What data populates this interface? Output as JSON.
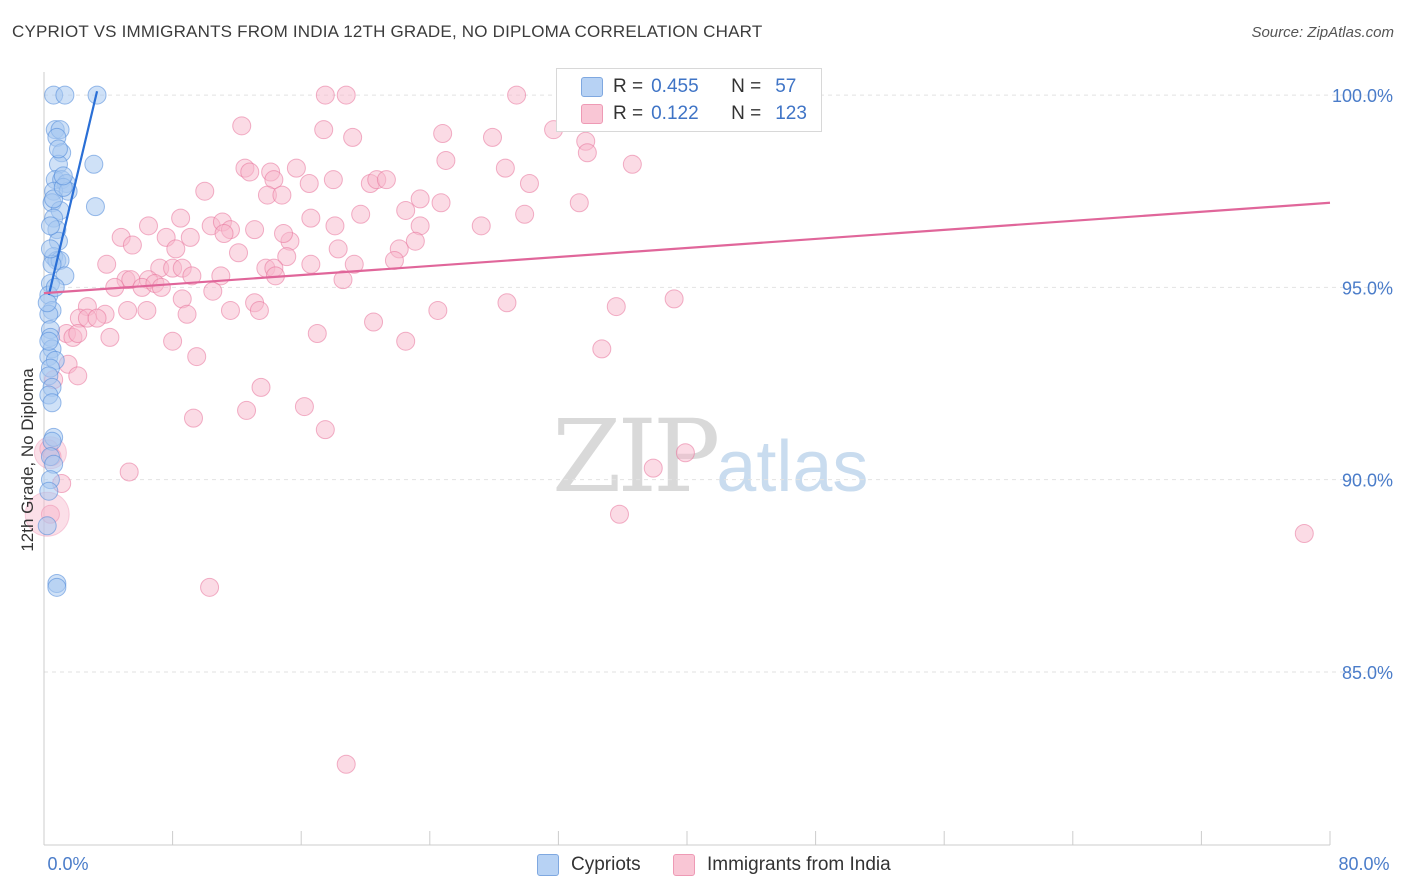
{
  "header": {
    "title": "CYPRIOT VS IMMIGRANTS FROM INDIA 12TH GRADE, NO DIPLOMA CORRELATION CHART",
    "source": "Source: ZipAtlas.com"
  },
  "watermark": {
    "zip": "ZIP",
    "atlas": "atlas"
  },
  "legend": {
    "rows": [
      {
        "r_label": "R =",
        "r_value": "0.455",
        "n_label": "N =",
        "n_value": "57",
        "color": "#a8c8f0"
      },
      {
        "r_label": "R =",
        "r_value": "0.122",
        "n_label": "N =",
        "n_value": "123",
        "color": "#f7b8cb"
      }
    ]
  },
  "bottom_legend": {
    "series_a": "Cypriots",
    "series_b": "Immigrants from India"
  },
  "chart_data": {
    "type": "scatter",
    "title": "CYPRIOT VS IMMIGRANTS FROM INDIA 12TH GRADE, NO DIPLOMA CORRELATION CHART",
    "xlabel": "",
    "ylabel": "12th Grade, No Diploma",
    "xlim": [
      0,
      80
    ],
    "ylim": [
      80.5,
      100.6
    ],
    "x_tick_labels": [
      "0.0%",
      "80.0%"
    ],
    "y_ticks": [
      85,
      90,
      95,
      100
    ],
    "y_tick_labels": [
      "85.0%",
      "90.0%",
      "95.0%",
      "100.0%"
    ],
    "series": [
      {
        "name": "Cypriots",
        "color": "#4a86d8",
        "fill": "#a8c8f0",
        "trend": {
          "x": [
            0.3,
            3.3
          ],
          "y": [
            94.8,
            100.1
          ]
        },
        "points": [
          [
            0.6,
            100.0
          ],
          [
            1.3,
            100.0
          ],
          [
            3.3,
            100.0
          ],
          [
            0.7,
            99.1
          ],
          [
            1.0,
            99.1
          ],
          [
            0.8,
            98.9
          ],
          [
            1.1,
            98.5
          ],
          [
            0.9,
            98.2
          ],
          [
            3.1,
            98.2
          ],
          [
            0.7,
            97.8
          ],
          [
            1.1,
            97.8
          ],
          [
            1.4,
            97.7
          ],
          [
            0.6,
            97.5
          ],
          [
            1.5,
            97.5
          ],
          [
            0.5,
            97.2
          ],
          [
            3.2,
            97.1
          ],
          [
            1.0,
            97.0
          ],
          [
            0.6,
            96.8
          ],
          [
            0.8,
            96.5
          ],
          [
            0.9,
            96.2
          ],
          [
            0.6,
            95.8
          ],
          [
            0.8,
            95.7
          ],
          [
            1.0,
            95.7
          ],
          [
            0.5,
            95.6
          ],
          [
            1.3,
            95.3
          ],
          [
            0.4,
            95.1
          ],
          [
            0.3,
            94.8
          ],
          [
            0.5,
            94.4
          ],
          [
            0.3,
            94.3
          ],
          [
            0.4,
            93.9
          ],
          [
            0.4,
            93.7
          ],
          [
            0.5,
            93.4
          ],
          [
            0.3,
            93.2
          ],
          [
            0.7,
            93.1
          ],
          [
            0.4,
            92.9
          ],
          [
            0.3,
            92.7
          ],
          [
            0.5,
            92.4
          ],
          [
            0.3,
            92.2
          ],
          [
            0.6,
            91.1
          ],
          [
            0.5,
            91.0
          ],
          [
            0.4,
            90.6
          ],
          [
            0.6,
            90.4
          ],
          [
            0.4,
            90.0
          ],
          [
            0.3,
            89.7
          ],
          [
            0.2,
            88.8
          ],
          [
            0.8,
            87.3
          ],
          [
            0.8,
            87.2
          ],
          [
            0.2,
            94.6
          ],
          [
            0.6,
            97.3
          ],
          [
            1.2,
            97.6
          ],
          [
            0.4,
            96.0
          ],
          [
            0.7,
            95.0
          ],
          [
            0.3,
            93.6
          ],
          [
            0.5,
            92.0
          ],
          [
            0.9,
            98.6
          ],
          [
            1.2,
            97.9
          ],
          [
            0.4,
            96.6
          ]
        ]
      },
      {
        "name": "Immigrants from India",
        "color": "#e8729a",
        "fill": "#f7b8cb",
        "trend": {
          "x": [
            0.0,
            80.0
          ],
          "y": [
            94.85,
            97.2
          ]
        },
        "points": [
          [
            17.5,
            100.0
          ],
          [
            18.8,
            100.0
          ],
          [
            29.4,
            100.0
          ],
          [
            12.3,
            99.2
          ],
          [
            17.4,
            99.1
          ],
          [
            24.8,
            99.0
          ],
          [
            27.9,
            98.9
          ],
          [
            19.2,
            98.9
          ],
          [
            31.7,
            99.1
          ],
          [
            33.7,
            98.8
          ],
          [
            33.8,
            98.5
          ],
          [
            25.0,
            98.3
          ],
          [
            36.6,
            98.2
          ],
          [
            12.5,
            98.1
          ],
          [
            12.8,
            98.0
          ],
          [
            14.1,
            98.0
          ],
          [
            15.7,
            98.1
          ],
          [
            28.7,
            98.1
          ],
          [
            14.3,
            97.8
          ],
          [
            16.5,
            97.7
          ],
          [
            18.0,
            97.8
          ],
          [
            20.3,
            97.7
          ],
          [
            20.7,
            97.8
          ],
          [
            21.3,
            97.8
          ],
          [
            30.2,
            97.7
          ],
          [
            10.0,
            97.5
          ],
          [
            13.9,
            97.4
          ],
          [
            14.8,
            97.4
          ],
          [
            33.3,
            97.2
          ],
          [
            23.4,
            97.3
          ],
          [
            24.7,
            97.2
          ],
          [
            8.5,
            96.8
          ],
          [
            16.6,
            96.8
          ],
          [
            19.7,
            96.9
          ],
          [
            22.5,
            97.0
          ],
          [
            29.9,
            96.9
          ],
          [
            10.4,
            96.6
          ],
          [
            11.1,
            96.7
          ],
          [
            11.6,
            96.5
          ],
          [
            13.1,
            96.5
          ],
          [
            18.1,
            96.6
          ],
          [
            23.4,
            96.6
          ],
          [
            27.2,
            96.6
          ],
          [
            4.8,
            96.3
          ],
          [
            7.6,
            96.3
          ],
          [
            9.1,
            96.3
          ],
          [
            11.2,
            96.4
          ],
          [
            15.3,
            96.2
          ],
          [
            23.1,
            96.2
          ],
          [
            5.5,
            96.1
          ],
          [
            8.2,
            96.0
          ],
          [
            12.1,
            95.9
          ],
          [
            15.1,
            95.8
          ],
          [
            18.3,
            96.0
          ],
          [
            22.1,
            96.0
          ],
          [
            3.9,
            95.6
          ],
          [
            7.2,
            95.5
          ],
          [
            8.0,
            95.5
          ],
          [
            8.6,
            95.5
          ],
          [
            13.8,
            95.5
          ],
          [
            14.3,
            95.5
          ],
          [
            16.6,
            95.6
          ],
          [
            19.3,
            95.6
          ],
          [
            14.4,
            95.3
          ],
          [
            5.1,
            95.2
          ],
          [
            5.4,
            95.2
          ],
          [
            6.5,
            95.2
          ],
          [
            11.0,
            95.3
          ],
          [
            9.2,
            95.3
          ],
          [
            18.6,
            95.2
          ],
          [
            4.4,
            95.0
          ],
          [
            6.1,
            95.0
          ],
          [
            6.9,
            95.1
          ],
          [
            7.3,
            95.0
          ],
          [
            10.5,
            94.9
          ],
          [
            13.1,
            94.6
          ],
          [
            8.6,
            94.7
          ],
          [
            28.8,
            94.6
          ],
          [
            35.6,
            94.5
          ],
          [
            39.2,
            94.7
          ],
          [
            2.7,
            94.5
          ],
          [
            3.8,
            94.3
          ],
          [
            5.2,
            94.4
          ],
          [
            6.4,
            94.4
          ],
          [
            8.9,
            94.3
          ],
          [
            11.6,
            94.4
          ],
          [
            13.4,
            94.4
          ],
          [
            24.5,
            94.4
          ],
          [
            20.5,
            94.1
          ],
          [
            2.2,
            94.2
          ],
          [
            2.7,
            94.2
          ],
          [
            3.3,
            94.2
          ],
          [
            1.4,
            93.8
          ],
          [
            1.8,
            93.7
          ],
          [
            2.1,
            93.8
          ],
          [
            4.1,
            93.7
          ],
          [
            17.0,
            93.8
          ],
          [
            22.5,
            93.6
          ],
          [
            34.7,
            93.4
          ],
          [
            9.5,
            93.2
          ],
          [
            1.5,
            93.0
          ],
          [
            2.1,
            92.7
          ],
          [
            13.5,
            92.4
          ],
          [
            12.6,
            91.8
          ],
          [
            9.3,
            91.6
          ],
          [
            16.2,
            91.9
          ],
          [
            17.5,
            91.3
          ],
          [
            0.3,
            90.8
          ],
          [
            0.5,
            90.6
          ],
          [
            39.9,
            90.7
          ],
          [
            37.9,
            90.3
          ],
          [
            5.3,
            90.2
          ],
          [
            1.1,
            89.9
          ],
          [
            0.4,
            89.1
          ],
          [
            35.8,
            89.1
          ],
          [
            78.4,
            88.6
          ],
          [
            10.3,
            87.2
          ],
          [
            18.8,
            82.6
          ],
          [
            0.6,
            92.6
          ],
          [
            8.0,
            93.6
          ],
          [
            6.5,
            96.6
          ],
          [
            21.8,
            95.7
          ],
          [
            14.9,
            96.4
          ]
        ]
      }
    ]
  }
}
